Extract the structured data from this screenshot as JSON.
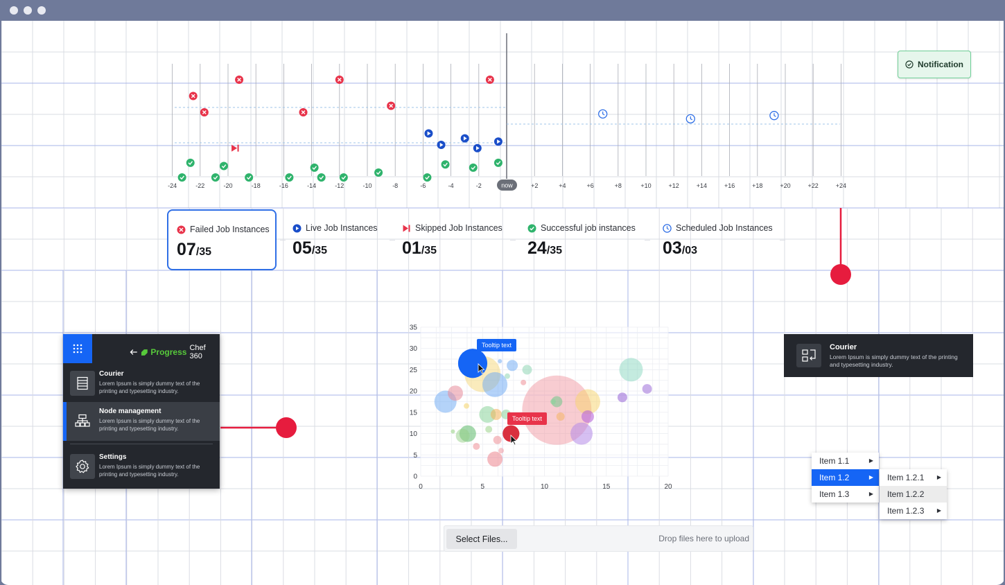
{
  "window": {
    "controls": [
      "window-dot",
      "window-dot",
      "window-dot"
    ]
  },
  "timeline": {
    "now_label": "now",
    "ticks": [
      "-24",
      "-22",
      "-20",
      "-18",
      "-16",
      "-14",
      "-12",
      "-10",
      "-8",
      "-6",
      "-4",
      "-2",
      "+2",
      "+4",
      "+6",
      "+8",
      "+10",
      "+12",
      "+14",
      "+16",
      "+18",
      "+20",
      "+22",
      "+24"
    ],
    "failed_points": [
      [
        -22.5,
        1
      ],
      [
        -21.7,
        2
      ],
      [
        -19.2,
        0
      ],
      [
        -14.6,
        2
      ],
      [
        -12,
        0
      ],
      [
        -8.3,
        1.6
      ],
      [
        -1.2,
        0
      ]
    ],
    "skipped_points": [
      [
        -19.5,
        4.2
      ]
    ],
    "live_points": [
      [
        -5.6,
        3.3
      ],
      [
        -4.7,
        4
      ],
      [
        -3,
        3.6
      ],
      [
        -2.1,
        4.2
      ],
      [
        -0.6,
        3.8
      ]
    ],
    "success_points": [
      [
        -23.3,
        6
      ],
      [
        -22.7,
        5.1
      ],
      [
        -20.9,
        6
      ],
      [
        -20.3,
        5.3
      ],
      [
        -18.5,
        6
      ],
      [
        -15.6,
        6
      ],
      [
        -13.8,
        5.4
      ],
      [
        -13.3,
        6
      ],
      [
        -11.7,
        6
      ],
      [
        -9.2,
        5.7
      ],
      [
        -5.7,
        6
      ],
      [
        -4.4,
        5.2
      ],
      [
        -2.4,
        5.4
      ],
      [
        -0.6,
        5.1
      ]
    ],
    "scheduled_points": [
      [
        6.9,
        2.1
      ],
      [
        13.2,
        2.4
      ],
      [
        19.2,
        2.2
      ]
    ]
  },
  "notification": {
    "label": "Notification"
  },
  "summary_cards": [
    {
      "label": "Failed Job Instances",
      "value": "07",
      "total": "/35",
      "icon": "x-circle-icon",
      "color": "#e8334a"
    },
    {
      "label": "Live Job Instances",
      "value": "05",
      "total": "/35",
      "icon": "play-circle-icon",
      "color": "#1a4ec9"
    },
    {
      "label": "Skipped Job Instances",
      "value": "01",
      "total": "/35",
      "icon": "skip-icon",
      "color": "#e8334a"
    },
    {
      "label": "Successful job instances",
      "value": "24",
      "total": "/35",
      "icon": "check-circle-icon",
      "color": "#2fb36c"
    },
    {
      "label": "Scheduled Job Instances",
      "value": "03",
      "total": "/03",
      "icon": "clock-icon",
      "color": "#2f6fe6"
    }
  ],
  "sidenav": {
    "brand_name": "Progress",
    "brand_product": "Chef 360",
    "items": [
      {
        "title": "Courier",
        "desc": "Lorem Ipsum is simply dummy text of the printing and typesetting industry.",
        "icon": "server-icon"
      },
      {
        "title": "Node management",
        "desc": "Lorem Ipsum is simply dummy text of the printing and typesetting industry.",
        "icon": "hierarchy-icon"
      },
      {
        "title": "Settings",
        "desc": "Lorem Ipsum is simply dummy text of the printing and typesetting industry.",
        "icon": "gear-icon"
      }
    ]
  },
  "chart_data": {
    "type": "scatter",
    "x_ticks": [
      "0",
      "5",
      "10",
      "15",
      "20"
    ],
    "y_ticks": [
      "0",
      "5",
      "10",
      "15",
      "20",
      "25",
      "30",
      "35"
    ],
    "xlim": [
      0,
      20
    ],
    "ylim": [
      0,
      35
    ],
    "bubbles": [
      {
        "x": 4.2,
        "y": 26.5,
        "r": 21,
        "color": "#1565f5",
        "opacity": 1
      },
      {
        "x": 6,
        "y": 21.5,
        "r": 18,
        "color": "#6aa8f3",
        "opacity": 0.5
      },
      {
        "x": 2,
        "y": 17.5,
        "r": 16,
        "color": "#6aa8f3",
        "opacity": 0.5
      },
      {
        "x": 2.8,
        "y": 19.5,
        "r": 11,
        "color": "#e88c9a",
        "opacity": 0.55
      },
      {
        "x": 5,
        "y": 24,
        "r": 26,
        "color": "#f4d36a",
        "opacity": 0.45
      },
      {
        "x": 7.3,
        "y": 10,
        "r": 12,
        "color": "#d9303f",
        "opacity": 1
      },
      {
        "x": 11,
        "y": 15.5,
        "r": 50,
        "color": "#ef8f98",
        "opacity": 0.45
      },
      {
        "x": 13.5,
        "y": 17.5,
        "r": 18,
        "color": "#f7d46a",
        "opacity": 0.5
      },
      {
        "x": 13,
        "y": 10,
        "r": 16,
        "color": "#b48ae8",
        "opacity": 0.55
      },
      {
        "x": 13.5,
        "y": 14,
        "r": 9,
        "color": "#b866d8",
        "opacity": 0.6
      },
      {
        "x": 11,
        "y": 17.5,
        "r": 8,
        "color": "#7bc690",
        "opacity": 0.6
      },
      {
        "x": 17,
        "y": 25,
        "r": 17,
        "color": "#89d7c0",
        "opacity": 0.5
      },
      {
        "x": 18.3,
        "y": 20.5,
        "r": 7,
        "color": "#9c6ed8",
        "opacity": 0.55
      },
      {
        "x": 16.3,
        "y": 18.5,
        "r": 7,
        "color": "#9c6ed8",
        "opacity": 0.6
      },
      {
        "x": 7.4,
        "y": 26,
        "r": 8,
        "color": "#6aa8f3",
        "opacity": 0.5
      },
      {
        "x": 8.6,
        "y": 25,
        "r": 7,
        "color": "#8fd6b4",
        "opacity": 0.55
      },
      {
        "x": 5.4,
        "y": 14.5,
        "r": 12,
        "color": "#8bd39b",
        "opacity": 0.55
      },
      {
        "x": 3.8,
        "y": 10,
        "r": 12,
        "color": "#6bbf77",
        "opacity": 0.6
      },
      {
        "x": 3.4,
        "y": 9.5,
        "r": 10,
        "color": "#95cf88",
        "opacity": 0.5
      },
      {
        "x": 6.1,
        "y": 14.5,
        "r": 8,
        "color": "#f4b25a",
        "opacity": 0.55
      },
      {
        "x": 6.9,
        "y": 14.5,
        "r": 7,
        "color": "#8bd39b",
        "opacity": 0.55
      },
      {
        "x": 6,
        "y": 4,
        "r": 11,
        "color": "#ef8f98",
        "opacity": 0.6
      },
      {
        "x": 6.2,
        "y": 8.5,
        "r": 6,
        "color": "#ef8f98",
        "opacity": 0.55
      },
      {
        "x": 4.5,
        "y": 7,
        "r": 5,
        "color": "#ef8f98",
        "opacity": 0.55
      },
      {
        "x": 5.5,
        "y": 11,
        "r": 5,
        "color": "#9dd38a",
        "opacity": 0.55
      },
      {
        "x": 2.6,
        "y": 10.5,
        "r": 3,
        "color": "#9dd38a",
        "opacity": 0.6
      },
      {
        "x": 8.3,
        "y": 22,
        "r": 4,
        "color": "#ef8f98",
        "opacity": 0.55
      },
      {
        "x": 7,
        "y": 23.5,
        "r": 4,
        "color": "#8fd6b4",
        "opacity": 0.55
      },
      {
        "x": 3.7,
        "y": 16.5,
        "r": 4,
        "color": "#f4d36a",
        "opacity": 0.55
      },
      {
        "x": 6.5,
        "y": 6,
        "r": 4,
        "color": "#ef8f98",
        "opacity": 0.5
      },
      {
        "x": 6.4,
        "y": 27,
        "r": 3,
        "color": "#6aa8f3",
        "opacity": 0.5
      },
      {
        "x": 10.7,
        "y": 17.5,
        "r": 4,
        "color": "#8bd39b",
        "opacity": 0.6
      },
      {
        "x": 11.3,
        "y": 14,
        "r": 6,
        "color": "#f4b25a",
        "opacity": 0.5
      }
    ],
    "tooltips": [
      {
        "text": "Tooltip text",
        "color": "#1565f5"
      },
      {
        "text": "Tooltip text",
        "color": "#e8334a"
      }
    ]
  },
  "courier_card": {
    "title": "Courier",
    "desc": "Lorem Ipsum is simply dummy text of the printing and typesetting industry.",
    "icon": "swap-icon"
  },
  "menu": {
    "level1": [
      "Item 1.1",
      "Item 1.2",
      "Item 1.3"
    ],
    "level2": [
      "Item 1.2.1",
      "Item 1.2.2",
      "Item 1.2.3"
    ]
  },
  "upload": {
    "button_label": "Select Files...",
    "hint": "Drop files here to upload"
  }
}
